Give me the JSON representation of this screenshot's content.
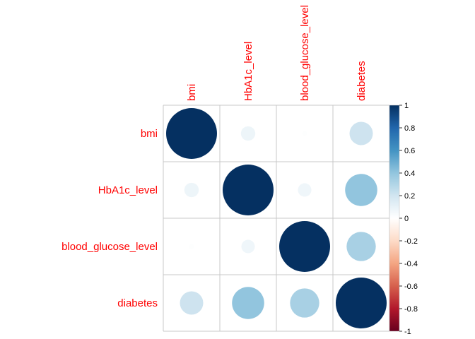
{
  "chart_data": {
    "type": "heatmap",
    "title": "",
    "variables": [
      "bmi",
      "HbA1c_level",
      "blood_glucose_level",
      "diabetes"
    ],
    "matrix": [
      [
        1.0,
        0.08,
        0.01,
        0.21
      ],
      [
        0.08,
        1.0,
        0.07,
        0.4
      ],
      [
        0.01,
        0.07,
        1.0,
        0.33
      ],
      [
        0.21,
        0.4,
        0.33,
        1.0
      ]
    ],
    "colorbar": {
      "range": [
        -1,
        1
      ],
      "ticks": [
        "-1",
        "-0.8",
        "-0.6",
        "-0.4",
        "-0.2",
        "0",
        "0.2",
        "0.4",
        "0.6",
        "0.8",
        "1"
      ]
    },
    "label_color": "#ff0000",
    "grid_color": "#c8c8c8",
    "color_stops": [
      "#67001f",
      "#b2182b",
      "#d6604d",
      "#f4a582",
      "#fddbc7",
      "#ffffff",
      "#d1e5f0",
      "#92c5de",
      "#4393c3",
      "#2166ac",
      "#053061"
    ]
  }
}
